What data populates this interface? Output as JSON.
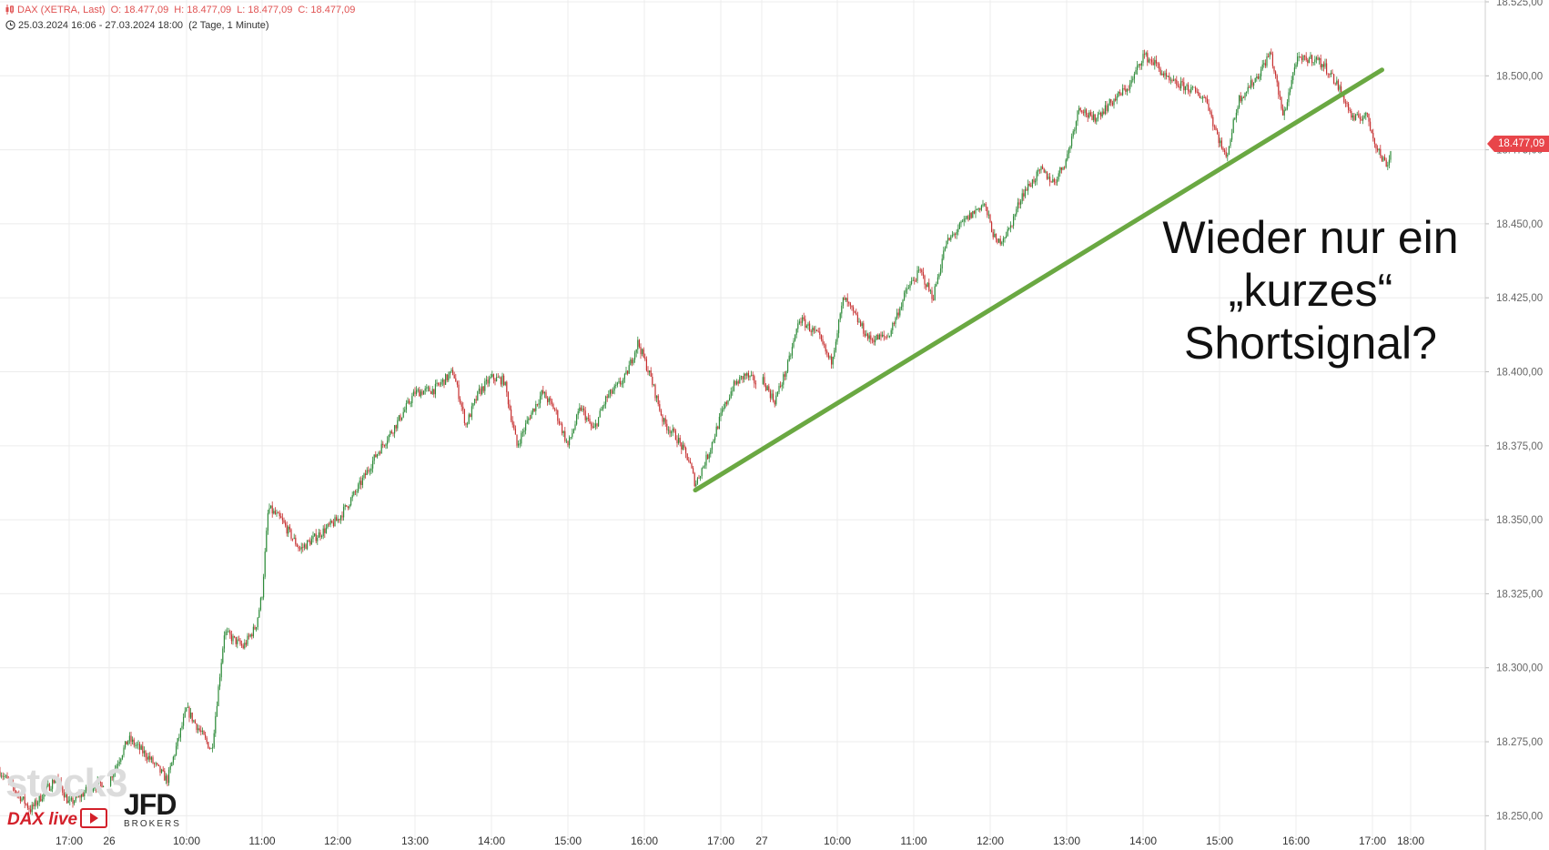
{
  "header": {
    "instrument": "DAX (XETRA, Last)",
    "open": "O: 18.477,09",
    "high": "H: 18.477,09",
    "low": "L: 18.477,09",
    "close": "C: 18.477,09",
    "range": "25.03.2024 16:06 - 27.03.2024 18:00",
    "interval": "(2 Tage, 1 Minute)"
  },
  "annotation_lines": [
    "Wieder nur ein",
    "„kurzes“",
    "Shortsignal?"
  ],
  "last_price_tag": "18.477,09",
  "logos": {
    "stock3": "stock3",
    "daxlive": "DAX live",
    "jfd": "JFD",
    "jfd_sub": "BROKERS"
  },
  "colors": {
    "up": "#2e8b3a",
    "down": "#c62f2f",
    "trendline": "#6aa842",
    "price_tag": "#e8454a",
    "grid": "#ececec"
  },
  "chart_data": {
    "type": "candlestick",
    "title": "",
    "ylim": [
      18237.5,
      18525
    ],
    "y_ticks": [
      18250,
      18275,
      18300,
      18325,
      18350,
      18375,
      18400,
      18425,
      18450,
      18475,
      18500,
      18525
    ],
    "y_tick_labels": [
      "18.250,00",
      "18.275,00",
      "18.300,00",
      "18.325,00",
      "18.350,00",
      "18.375,00",
      "18.400,00",
      "18.425,00",
      "18.450,00",
      "18.475,00",
      "18.500,00",
      "18.525,00"
    ],
    "x_ticks": [
      {
        "label": "17:00",
        "t": "25.03 17:00"
      },
      {
        "label": "26",
        "t": "26.03 09:00"
      },
      {
        "label": "10:00",
        "t": "26.03 10:00"
      },
      {
        "label": "11:00",
        "t": "26.03 11:00"
      },
      {
        "label": "12:00",
        "t": "26.03 12:00"
      },
      {
        "label": "13:00",
        "t": "26.03 13:00"
      },
      {
        "label": "14:00",
        "t": "26.03 14:00"
      },
      {
        "label": "15:00",
        "t": "26.03 15:00"
      },
      {
        "label": "16:00",
        "t": "26.03 16:00"
      },
      {
        "label": "17:00",
        "t": "26.03 17:00"
      },
      {
        "label": "27",
        "t": "27.03 09:00"
      },
      {
        "label": "10:00",
        "t": "27.03 10:00"
      },
      {
        "label": "11:00",
        "t": "27.03 11:00"
      },
      {
        "label": "12:00",
        "t": "27.03 12:00"
      },
      {
        "label": "13:00",
        "t": "27.03 13:00"
      },
      {
        "label": "14:00",
        "t": "27.03 14:00"
      },
      {
        "label": "15:00",
        "t": "27.03 15:00"
      },
      {
        "label": "16:00",
        "t": "27.03 16:00"
      },
      {
        "label": "17:00",
        "t": "27.03 17:00"
      },
      {
        "label": "18:00",
        "t": "27.03 18:00"
      }
    ],
    "series": [
      {
        "points": [
          [
            "25.03 16:06",
            18265
          ],
          [
            "25.03 16:30",
            18252
          ],
          [
            "25.03 16:50",
            18263
          ],
          [
            "25.03 17:00",
            18254
          ],
          [
            "25.03 17:20",
            18260
          ],
          [
            "26.03 09:00",
            18262
          ],
          [
            "26.03 09:15",
            18276
          ],
          [
            "26.03 09:30",
            18270
          ],
          [
            "26.03 09:45",
            18262
          ],
          [
            "26.03 10:00",
            18286
          ],
          [
            "26.03 10:10",
            18279
          ],
          [
            "26.03 10:20",
            18272
          ],
          [
            "26.03 10:30",
            18312
          ],
          [
            "26.03 10:45",
            18307
          ],
          [
            "26.03 10:55",
            18314
          ],
          [
            "26.03 11:00",
            18325
          ],
          [
            "26.03 11:05",
            18354
          ],
          [
            "26.03 11:15",
            18350
          ],
          [
            "26.03 11:30",
            18340
          ],
          [
            "26.03 11:45",
            18345
          ],
          [
            "26.03 12:00",
            18350
          ],
          [
            "26.03 12:15",
            18360
          ],
          [
            "26.03 12:30",
            18372
          ],
          [
            "26.03 12:45",
            18382
          ],
          [
            "26.03 13:00",
            18393
          ],
          [
            "26.03 13:15",
            18394
          ],
          [
            "26.03 13:30",
            18400
          ],
          [
            "26.03 13:40",
            18382
          ],
          [
            "26.03 13:50",
            18393
          ],
          [
            "26.03 14:00",
            18398
          ],
          [
            "26.03 14:10",
            18397
          ],
          [
            "26.03 14:20",
            18375
          ],
          [
            "26.03 14:30",
            18385
          ],
          [
            "26.03 14:40",
            18393
          ],
          [
            "26.03 14:50",
            18387
          ],
          [
            "26.03 15:00",
            18375
          ],
          [
            "26.03 15:10",
            18388
          ],
          [
            "26.03 15:20",
            18380
          ],
          [
            "26.03 15:30",
            18391
          ],
          [
            "26.03 15:45",
            18398
          ],
          [
            "26.03 15:55",
            18410
          ],
          [
            "26.03 16:05",
            18398
          ],
          [
            "26.03 16:15",
            18383
          ],
          [
            "26.03 16:25",
            18378
          ],
          [
            "26.03 16:35",
            18370
          ],
          [
            "26.03 16:40",
            18362
          ],
          [
            "26.03 16:50",
            18372
          ],
          [
            "26.03 17:00",
            18385
          ],
          [
            "26.03 17:10",
            18395
          ],
          [
            "26.03 17:20",
            18399
          ],
          [
            "26.03 17:30",
            18396
          ],
          [
            "27.03 09:00",
            18398
          ],
          [
            "27.03 09:10",
            18390
          ],
          [
            "27.03 09:20",
            18401
          ],
          [
            "27.03 09:30",
            18418
          ],
          [
            "27.03 09:45",
            18412
          ],
          [
            "27.03 09:55",
            18403
          ],
          [
            "27.03 10:05",
            18425
          ],
          [
            "27.03 10:15",
            18418
          ],
          [
            "27.03 10:25",
            18411
          ],
          [
            "27.03 10:40",
            18412
          ],
          [
            "27.03 10:55",
            18428
          ],
          [
            "27.03 11:05",
            18434
          ],
          [
            "27.03 11:15",
            18425
          ],
          [
            "27.03 11:25",
            18443
          ],
          [
            "27.03 11:40",
            18451
          ],
          [
            "27.03 11:55",
            18457
          ],
          [
            "27.03 12:05",
            18443
          ],
          [
            "27.03 12:15",
            18448
          ],
          [
            "27.03 12:25",
            18460
          ],
          [
            "27.03 12:40",
            18468
          ],
          [
            "27.03 12:50",
            18464
          ],
          [
            "27.03 13:00",
            18472
          ],
          [
            "27.03 13:10",
            18490
          ],
          [
            "27.03 13:20",
            18485
          ],
          [
            "27.03 13:35",
            18491
          ],
          [
            "27.03 13:50",
            18497
          ],
          [
            "27.03 14:00",
            18507
          ],
          [
            "27.03 14:10",
            18504
          ],
          [
            "27.03 14:20",
            18498
          ],
          [
            "27.03 14:35",
            18496
          ],
          [
            "27.03 14:50",
            18492
          ],
          [
            "27.03 14:55",
            18484
          ],
          [
            "27.03 15:05",
            18472
          ],
          [
            "27.03 15:15",
            18492
          ],
          [
            "27.03 15:30",
            18500
          ],
          [
            "27.03 15:40",
            18508
          ],
          [
            "27.03 15:50",
            18486
          ],
          [
            "27.03 16:00",
            18505
          ],
          [
            "27.03 16:15",
            18506
          ],
          [
            "27.03 16:25",
            18502
          ],
          [
            "27.03 16:35",
            18495
          ],
          [
            "27.03 16:45",
            18485
          ],
          [
            "27.03 16:55",
            18487
          ],
          [
            "27.03 17:05",
            18477
          ],
          [
            "27.03 17:15",
            18472
          ],
          [
            "27.03 17:25",
            18470
          ],
          [
            "27.03 17:30",
            18477
          ]
        ]
      }
    ],
    "trendline": {
      "from": [
        "26.03 16:40",
        18360
      ],
      "to": [
        "27.03 17:15",
        18502
      ]
    }
  }
}
